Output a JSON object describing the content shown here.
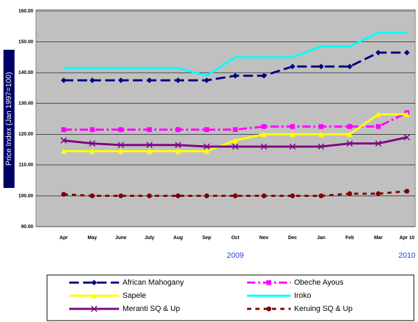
{
  "chart_data": {
    "type": "line",
    "y_label": "Price Index (Jan 1997=100)",
    "categories": [
      "Apr",
      "May",
      "June",
      "July",
      "Aug",
      "Sep",
      "Oct",
      "Nov",
      "Dec",
      "Jan",
      "Feb",
      "Mar",
      "Apr 10"
    ],
    "annotations": [
      {
        "text": "2009",
        "category": 6
      },
      {
        "text": "2010",
        "category": 12
      }
    ],
    "ylim": [
      90,
      160
    ],
    "yticks": [
      {
        "value": 90,
        "label": "90.00"
      },
      {
        "value": 100,
        "label": "100.00"
      },
      {
        "value": 110,
        "label": "110.00"
      },
      {
        "value": 120,
        "label": "120.00"
      },
      {
        "value": 130,
        "label": "130.00"
      },
      {
        "value": 140,
        "label": "140.00"
      },
      {
        "value": 150,
        "label": "150.00"
      },
      {
        "value": 160,
        "label": "160.00"
      }
    ],
    "grid": true,
    "series": [
      {
        "name": "African Mahogany",
        "color": "#000080",
        "dash": "long",
        "marker": "diamond",
        "values": [
          137.5,
          137.5,
          137.5,
          137.5,
          137.5,
          137.5,
          139,
          139,
          142,
          142,
          142,
          146.5,
          146.5
        ]
      },
      {
        "name": "Obeche Ayous",
        "color": "#ff00ff",
        "dash": "dashdot",
        "marker": "square",
        "values": [
          121.5,
          121.5,
          121.5,
          121.5,
          121.5,
          121.5,
          121.5,
          122.5,
          122.5,
          122.5,
          122.5,
          122.5,
          127
        ]
      },
      {
        "name": "Sapele",
        "color": "#ffff00",
        "dash": "solid",
        "marker": "triangle",
        "values": [
          114.5,
          114.5,
          114.5,
          114.5,
          114.5,
          114.5,
          118,
          120,
          120,
          120,
          120,
          126.5,
          126.5
        ]
      },
      {
        "name": "Iroko",
        "color": "#00ffff",
        "dash": "solid",
        "marker": "none",
        "values": [
          141.5,
          141.5,
          141.5,
          141.5,
          141.5,
          139,
          145,
          145,
          145,
          148.5,
          148.5,
          153,
          153
        ]
      },
      {
        "name": "Meranti SQ & Up",
        "color": "#800080",
        "dash": "solid",
        "marker": "x",
        "values": [
          118,
          117,
          116.5,
          116.5,
          116.5,
          116,
          116,
          116,
          116,
          116,
          117,
          117,
          119
        ]
      },
      {
        "name": "Keruing SQ & Up",
        "color": "#800000",
        "dash": "dotted",
        "marker": "circle",
        "values": [
          100.5,
          100,
          100,
          100,
          100,
          100,
          100,
          100,
          100,
          100,
          100.7,
          100.7,
          101.5
        ]
      }
    ]
  }
}
